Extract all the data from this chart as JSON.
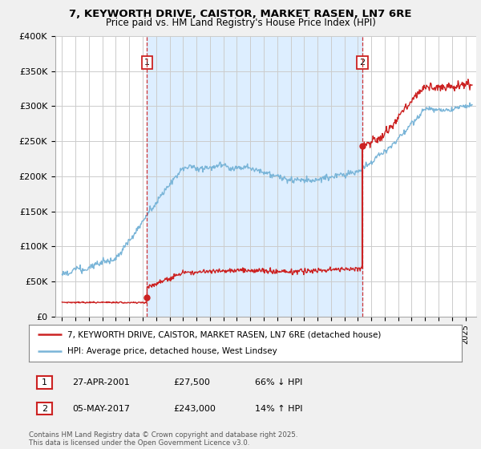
{
  "title_line1": "7, KEYWORTH DRIVE, CAISTOR, MARKET RASEN, LN7 6RE",
  "title_line2": "Price paid vs. HM Land Registry's House Price Index (HPI)",
  "ylim": [
    0,
    400000
  ],
  "yticks": [
    0,
    50000,
    100000,
    150000,
    200000,
    250000,
    300000,
    350000,
    400000
  ],
  "ytick_labels": [
    "£0",
    "£50K",
    "£100K",
    "£150K",
    "£200K",
    "£250K",
    "£300K",
    "£350K",
    "£400K"
  ],
  "hpi_color": "#7ab5d8",
  "price_color": "#cc2222",
  "sale1_date": 2001.32,
  "sale1_price": 27500,
  "sale2_date": 2017.34,
  "sale2_price": 243000,
  "vline_color": "#cc2222",
  "marker_color": "#cc2222",
  "legend_label_price": "7, KEYWORTH DRIVE, CAISTOR, MARKET RASEN, LN7 6RE (detached house)",
  "legend_label_hpi": "HPI: Average price, detached house, West Lindsey",
  "annotation1_date": "27-APR-2001",
  "annotation1_price": "£27,500",
  "annotation1_hpi": "66% ↓ HPI",
  "annotation2_date": "05-MAY-2017",
  "annotation2_price": "£243,000",
  "annotation2_hpi": "14% ↑ HPI",
  "footer": "Contains HM Land Registry data © Crown copyright and database right 2025.\nThis data is licensed under the Open Government Licence v3.0.",
  "bg_color": "#f0f0f0",
  "plot_bg_color": "#ffffff",
  "shade_color": "#ddeeff",
  "grid_color": "#cccccc"
}
